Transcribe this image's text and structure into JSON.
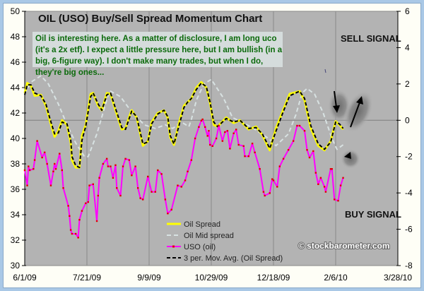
{
  "chart_data": {
    "type": "line",
    "title": "OIL (USO) Buy/Sell Spread Momentum Chart",
    "annotation": "Oil is interesting here.  As a matter of disclosure, I am long uco (it's a 2x etf).  I expect a little pressure here, but I am bullish (in a big, 6-figure way).  I don't make many trades, but when I do, they're big ones...",
    "signals": {
      "sell": "SELL SIGNAL",
      "buy": "BUY SIGNAL"
    },
    "watermark": "© stockbarometer.com",
    "x_unit": "days since 6/1/09",
    "xlim": [
      0,
      300
    ],
    "x_ticks": [
      {
        "v": 0,
        "label": "6/1/09"
      },
      {
        "v": 50,
        "label": "7/21/09"
      },
      {
        "v": 100,
        "label": "9/9/09"
      },
      {
        "v": 150,
        "label": "10/29/09"
      },
      {
        "v": 200,
        "label": "12/18/09"
      },
      {
        "v": 250,
        "label": "2/6/10"
      },
      {
        "v": 300,
        "label": "3/28/10"
      }
    ],
    "y_left": {
      "lim": [
        30,
        50
      ],
      "ticks": [
        "30",
        "32",
        "34",
        "36",
        "38",
        "40",
        "42",
        "44",
        "46",
        "48",
        "50"
      ]
    },
    "y_right": {
      "lim": [
        -8,
        6
      ],
      "ticks": [
        "-8",
        "-6",
        "-4",
        "-2",
        "0",
        "2",
        "4",
        "6"
      ]
    },
    "grid": "vertical at x ticks; horizontal at right-axis 0",
    "legend_position": "bottom-center",
    "series": [
      {
        "name": "Oil Spread",
        "axis": "right",
        "color": "#ffff00",
        "x": [
          0,
          2,
          5,
          8,
          13,
          17,
          20,
          24,
          27,
          30,
          34,
          37,
          38,
          41,
          44,
          46,
          49,
          53,
          55,
          59,
          62,
          66,
          69,
          73,
          78,
          81,
          84,
          86,
          90,
          95,
          99,
          102,
          107,
          112,
          115,
          117,
          120,
          124,
          128,
          131,
          134,
          138,
          142,
          146,
          149,
          152,
          155,
          162,
          168,
          173,
          180,
          186,
          191,
          197,
          202,
          208,
          213,
          221,
          225,
          230,
          236,
          241,
          246,
          250,
          253,
          256
        ],
        "y": [
          1.5,
          2.05,
          1.9,
          1.35,
          1.4,
          0.8,
          0.03,
          -0.9,
          -0.6,
          0,
          -0.25,
          -1.25,
          -2.2,
          -2.6,
          -2.6,
          -0.85,
          -0.25,
          1.45,
          1.5,
          0.8,
          0.55,
          1.5,
          1.45,
          0.55,
          -0.5,
          -0.45,
          0.2,
          0.55,
          0.15,
          -1.4,
          -1.15,
          -0.1,
          0.4,
          0.55,
          0.15,
          -0.95,
          -1.35,
          -0.15,
          0.8,
          1.0,
          1.2,
          1.8,
          2.1,
          1.8,
          0.95,
          -0.25,
          -0.35,
          0.15,
          -0.15,
          0,
          -0.5,
          -0.35,
          -0.8,
          -1.65,
          -0.45,
          0.6,
          1.45,
          1.6,
          1.1,
          -0.45,
          -1.4,
          -1.65,
          -1.15,
          -0.05,
          -0.25,
          -0.5
        ]
      },
      {
        "name": "Oil Mid spread",
        "axis": "right",
        "color": "#d8e2e2",
        "x": [
          0,
          5,
          13,
          19,
          27,
          34,
          41,
          48,
          51,
          58,
          68,
          69,
          77,
          85,
          96,
          105,
          113,
          119,
          126,
          132,
          134,
          138,
          144,
          150,
          160,
          167,
          176,
          184,
          197,
          202,
          212,
          218,
          223,
          227,
          233,
          240,
          247,
          251,
          256
        ],
        "y": [
          1.45,
          2.1,
          2.45,
          2.0,
          0.9,
          -0.25,
          -1.25,
          -2.0,
          -2.0,
          -0.75,
          1.6,
          1.6,
          1.3,
          0.55,
          -0.25,
          -0.45,
          -0.25,
          -0.45,
          -0.1,
          -0.35,
          0.05,
          1.1,
          2.0,
          2.25,
          1.2,
          0.15,
          -0.15,
          -0.45,
          -1.05,
          -1.4,
          -0.75,
          0.3,
          1.5,
          1.75,
          1.45,
          0.4,
          -1.0,
          -1.6,
          -1.35
        ]
      },
      {
        "name": "USO (oil)",
        "axis": "left",
        "color": "#ff00ff",
        "marker_color": "#e00000",
        "x": [
          0,
          2,
          3,
          4,
          7,
          8,
          10,
          14,
          16,
          18,
          21,
          23,
          24,
          25,
          28,
          30,
          31,
          35,
          36,
          37,
          38,
          41,
          43,
          44,
          46,
          49,
          51,
          52,
          55,
          58,
          59,
          60,
          63,
          66,
          67,
          69,
          71,
          73,
          74,
          77,
          79,
          81,
          84,
          86,
          89,
          91,
          93,
          95,
          99,
          102,
          105,
          107,
          110,
          113,
          115,
          118,
          123,
          126,
          129,
          131,
          134,
          137,
          140,
          142,
          143,
          145,
          147,
          148,
          149,
          151,
          154,
          156,
          159,
          161,
          163,
          165,
          168,
          170,
          172,
          176,
          177,
          180,
          183,
          185,
          189,
          192,
          193,
          197,
          199,
          200,
          203,
          205,
          208,
          212,
          216,
          219,
          221,
          225,
          227,
          229,
          232,
          234,
          236,
          238,
          241,
          242,
          246,
          247,
          249,
          252,
          254,
          256
        ],
        "y": [
          37.5,
          36.3,
          37.8,
          37.5,
          37.6,
          38.3,
          39.8,
          38.5,
          38.9,
          38.0,
          36.3,
          37.4,
          38.0,
          37.6,
          38.8,
          37.5,
          36.1,
          34.7,
          33.9,
          32.8,
          32.5,
          32.5,
          32.2,
          33.6,
          34.3,
          34.9,
          35.0,
          36.3,
          36.4,
          33.5,
          35.5,
          36.9,
          38.0,
          38.4,
          37.8,
          37.8,
          36.9,
          37.9,
          36.1,
          35.5,
          37.8,
          38.4,
          38.3,
          37.1,
          37.8,
          36.1,
          35.3,
          35.2,
          37.0,
          35.8,
          35.8,
          37.5,
          37.2,
          35.2,
          34.1,
          34.4,
          36.3,
          36.2,
          36.7,
          37.4,
          38.3,
          40.0,
          40.9,
          41.4,
          41.5,
          40.9,
          40.2,
          40.6,
          39.5,
          39.4,
          40.0,
          41.0,
          39.8,
          40.5,
          40.6,
          39.2,
          40.4,
          40.7,
          39.5,
          39.4,
          38.6,
          38.6,
          39.6,
          38.9,
          37.6,
          35.8,
          35.5,
          35.7,
          36.8,
          36.7,
          36.2,
          37.8,
          38.4,
          39.1,
          39.8,
          41.0,
          41.0,
          40.6,
          39.1,
          38.5,
          39.0,
          37.3,
          36.4,
          36.9,
          36.2,
          35.8,
          37.6,
          37.6,
          35.2,
          35.1,
          36.3,
          36.9
        ]
      },
      {
        "name": "3 per. Mov. Avg. (Oil Spread)",
        "axis": "right",
        "color": "#000000",
        "x": [
          0,
          2,
          5,
          8,
          13,
          17,
          20,
          24,
          27,
          30,
          34,
          37,
          38,
          41,
          44,
          46,
          49,
          53,
          55,
          59,
          62,
          66,
          69,
          73,
          78,
          81,
          84,
          86,
          90,
          95,
          99,
          102,
          107,
          112,
          115,
          117,
          120,
          124,
          128,
          131,
          134,
          138,
          142,
          146,
          149,
          152,
          155,
          162,
          168,
          173,
          180,
          186,
          191,
          197,
          202,
          208,
          213,
          221,
          225,
          230,
          236,
          241,
          246,
          250,
          253,
          256
        ],
        "y": [
          1.4,
          1.95,
          1.95,
          1.5,
          1.35,
          0.9,
          0.15,
          -0.75,
          -0.7,
          -0.1,
          -0.2,
          -1.1,
          -2.0,
          -2.5,
          -2.6,
          -1.1,
          -0.35,
          1.3,
          1.5,
          0.9,
          0.55,
          1.4,
          1.5,
          0.65,
          -0.4,
          -0.5,
          0.1,
          0.5,
          0.2,
          -1.3,
          -1.2,
          -0.2,
          0.35,
          0.55,
          0.2,
          -0.85,
          -1.3,
          -0.3,
          0.7,
          1.0,
          1.2,
          1.7,
          2.05,
          1.85,
          1.0,
          -0.1,
          -0.35,
          0.1,
          -0.1,
          0,
          -0.45,
          -0.4,
          -0.75,
          -1.55,
          -0.6,
          0.5,
          1.35,
          1.6,
          1.2,
          -0.3,
          -1.3,
          -1.6,
          -1.2,
          -0.1,
          -0.2,
          -0.45
        ]
      }
    ]
  }
}
